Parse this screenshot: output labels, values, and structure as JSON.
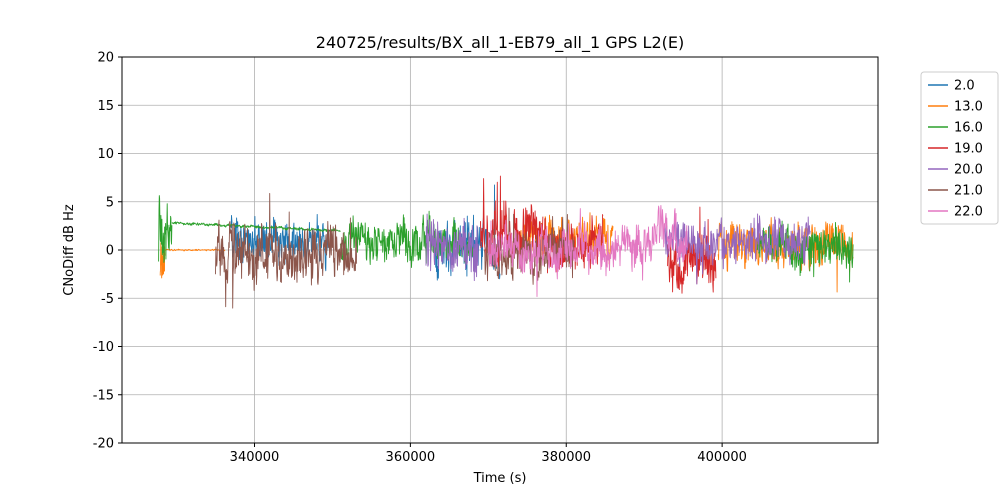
{
  "chart_data": {
    "type": "line",
    "title": "240725/results/BX_all_1-EB79_all_1 GPS L2(E)",
    "xlabel": "Time (s)",
    "ylabel": "CNoDiff dB Hz",
    "xlim": [
      323000,
      420000
    ],
    "ylim": [
      -20,
      20
    ],
    "xticks": [
      340000,
      360000,
      380000,
      400000
    ],
    "yticks": [
      -20,
      -15,
      -10,
      -5,
      0,
      5,
      10,
      15,
      20
    ],
    "grid": true,
    "legend_position": "outside-right",
    "colors": {
      "grid": "#b0b0b0",
      "axes": "#000000",
      "background": "#ffffff",
      "legend_border": "#cccccc"
    },
    "series": [
      {
        "name": "2.0",
        "color": "#1f77b4",
        "segments": [
          {
            "x_start": 337000,
            "x_end": 349500,
            "mean": 0.9,
            "amplitude": 1.7
          },
          {
            "x_start": 363000,
            "x_end": 371500,
            "mean": 0.4,
            "amplitude": 2.3
          }
        ]
      },
      {
        "name": "13.0",
        "color": "#ff7f0e",
        "segments": [
          {
            "x_start": 327900,
            "x_end": 328500,
            "mean": -0.8,
            "amplitude": 1.8
          },
          {
            "x_start": 328500,
            "x_end": 336200,
            "mean": 0.0,
            "amplitude": 0.06
          },
          {
            "x_start": 374000,
            "x_end": 386000,
            "mean": 1.2,
            "amplitude": 1.8
          },
          {
            "x_start": 399500,
            "x_end": 416800,
            "mean": 0.4,
            "amplitude": 1.8
          }
        ]
      },
      {
        "name": "16.0",
        "color": "#2ca02c",
        "segments": [
          {
            "x_start": 327700,
            "x_end": 329400,
            "mean": 2.2,
            "amplitude": 2.2
          },
          {
            "x_start": 329400,
            "x_end": 351000,
            "mean": 2.8,
            "mean_end": 2.0,
            "amplitude": 0.12
          },
          {
            "x_start": 351000,
            "x_end": 368000,
            "mean": 0.8,
            "amplitude": 1.6
          },
          {
            "x_start": 404500,
            "x_end": 416800,
            "mean": 0.2,
            "amplitude": 1.6
          }
        ]
      },
      {
        "name": "19.0",
        "color": "#d62728",
        "segments": [
          {
            "x_start": 369000,
            "x_end": 377000,
            "mean": 1.5,
            "amplitude": 2.3
          },
          {
            "x_start": 377000,
            "x_end": 384700,
            "mean": 0.3,
            "amplitude": 1.9
          },
          {
            "x_start": 393000,
            "x_end": 399200,
            "mean": -1.0,
            "amplitude": 2.1
          }
        ]
      },
      {
        "name": "20.0",
        "color": "#9467bd",
        "segments": [
          {
            "x_start": 362000,
            "x_end": 368700,
            "mean": 0.8,
            "amplitude": 2.3
          },
          {
            "x_start": 392500,
            "x_end": 411300,
            "mean": 0.8,
            "amplitude": 1.7
          }
        ]
      },
      {
        "name": "21.0",
        "color": "#8c564b",
        "segments": [
          {
            "x_start": 335000,
            "x_end": 353100,
            "mean": -0.4,
            "amplitude": 2.3
          },
          {
            "x_start": 369500,
            "x_end": 381000,
            "mean": -0.4,
            "amplitude": 1.9
          }
        ]
      },
      {
        "name": "22.0",
        "color": "#e377c2",
        "segments": [
          {
            "x_start": 370000,
            "x_end": 391000,
            "mean": 0.1,
            "amplitude": 1.7
          },
          {
            "x_start": 391000,
            "x_end": 394100,
            "mean": 2.2,
            "amplitude": 1.9
          },
          {
            "x_start": 394100,
            "x_end": 395500,
            "mean": 0.2,
            "amplitude": 1.3
          }
        ]
      }
    ]
  }
}
